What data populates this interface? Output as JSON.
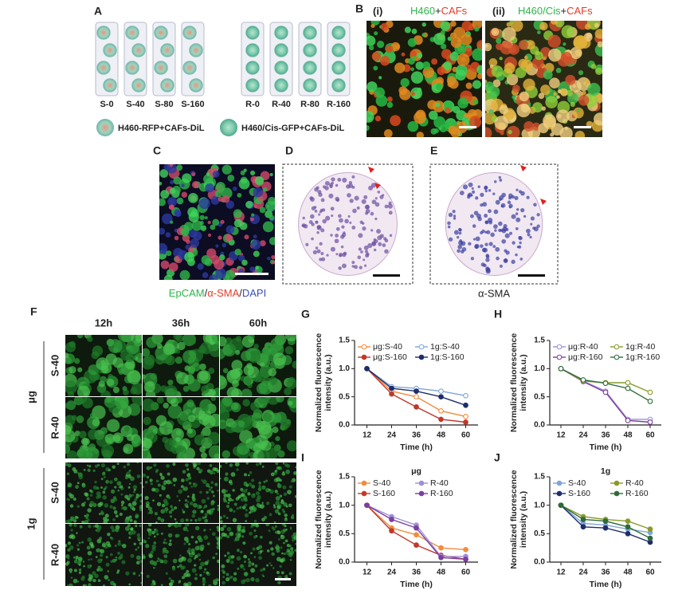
{
  "panel_a": {
    "label": "A",
    "columns_s": [
      "S-0",
      "S-40",
      "S-80",
      "S-160"
    ],
    "columns_r": [
      "R-0",
      "R-40",
      "R-80",
      "R-160"
    ],
    "legend": [
      "H460-RFP+CAFs-DiL",
      "H460/Cis-GFP+CAFs-DiL"
    ]
  },
  "panel_b": {
    "label": "B",
    "sub": [
      {
        "label": "(i)",
        "title": [
          "H460",
          "+",
          "CAFs"
        ]
      },
      {
        "label": "(ii)",
        "title": [
          "H460/Cis",
          "+",
          "CAFs"
        ]
      }
    ]
  },
  "panel_c": {
    "label": "C",
    "caption": [
      "EpCAM",
      "/",
      "α-SMA",
      "/",
      "DAPI"
    ]
  },
  "panel_d": {
    "label": "D"
  },
  "panel_e": {
    "label": "E",
    "caption": "α-SMA"
  },
  "panel_f": {
    "label": "F",
    "times": [
      "12h",
      "36h",
      "60h"
    ],
    "groups": [
      {
        "name": "μg",
        "rows": [
          "S-40",
          "R-40"
        ]
      },
      {
        "name": "1g",
        "rows": [
          "S-40",
          "R-40"
        ]
      }
    ]
  },
  "chart_data": [
    {
      "type": "line",
      "panel": "G",
      "xlabel": "Time (h)",
      "ylabel": [
        "Normalized fluorescence",
        "intensity (a.u.)"
      ],
      "x": [
        12,
        24,
        36,
        48,
        60
      ],
      "xlim": [
        6,
        66
      ],
      "xticks": [
        12,
        24,
        36,
        48,
        60
      ],
      "ylim": [
        0,
        1.5
      ],
      "yticks": [
        {
          "value": 0,
          "label": "0.0"
        },
        0.5,
        {
          "value": 1,
          "label": "1.0"
        },
        1.5
      ],
      "series": [
        {
          "name": "μg:S-40",
          "color": "#f28c3c",
          "marker": "open",
          "values": [
            1.0,
            0.6,
            0.5,
            0.25,
            0.15
          ]
        },
        {
          "name": "μg:S-160",
          "color": "#c0392b",
          "marker": "filled",
          "values": [
            1.0,
            0.55,
            0.32,
            0.1,
            0.05
          ]
        },
        {
          "name": "1g:S-40",
          "color": "#7fa6d9",
          "marker": "open",
          "values": [
            1.0,
            0.68,
            0.65,
            0.6,
            0.52
          ]
        },
        {
          "name": "1g:S-160",
          "color": "#1f2d6b",
          "marker": "filled",
          "values": [
            1.0,
            0.65,
            0.6,
            0.5,
            0.35
          ]
        }
      ]
    },
    {
      "type": "line",
      "panel": "H",
      "xlabel": "Time (h)",
      "ylabel": [
        "Normalized fluorescence",
        "intensity (a.u.)"
      ],
      "x": [
        12,
        24,
        36,
        48,
        60
      ],
      "xlim": [
        6,
        66
      ],
      "xticks": [
        12,
        24,
        36,
        48,
        60
      ],
      "ylim": [
        0,
        1.5
      ],
      "yticks": [
        {
          "value": 0,
          "label": "0.0"
        },
        0.5,
        {
          "value": 1,
          "label": "1.0"
        },
        1.5
      ],
      "series": [
        {
          "name": "μg:R-40",
          "color": "#a08fd6",
          "marker": "open",
          "values": [
            1.0,
            0.78,
            0.6,
            0.1,
            0.1
          ]
        },
        {
          "name": "μg:R-160",
          "color": "#7a3fa0",
          "marker": "open",
          "values": [
            1.0,
            0.77,
            0.58,
            0.08,
            0.05
          ]
        },
        {
          "name": "1g:R-40",
          "color": "#8a9a2a",
          "marker": "open",
          "values": [
            1.0,
            0.78,
            0.75,
            0.75,
            0.58
          ]
        },
        {
          "name": "1g:R-160",
          "color": "#2e6b3a",
          "marker": "open",
          "values": [
            1.0,
            0.8,
            0.74,
            0.65,
            0.42
          ]
        }
      ]
    },
    {
      "type": "line",
      "panel": "I",
      "title": "μg",
      "xlabel": "Time (h)",
      "ylabel": [
        "Normalized fluorescence",
        "intensity (a.u.)"
      ],
      "x": [
        12,
        24,
        36,
        48,
        60
      ],
      "xlim": [
        6,
        66
      ],
      "xticks": [
        12,
        24,
        36,
        48,
        60
      ],
      "ylim": [
        0,
        1.5
      ],
      "yticks": [
        {
          "value": 0,
          "label": "0.0"
        },
        0.5,
        {
          "value": 1,
          "label": "1.0"
        },
        1.5
      ],
      "series": [
        {
          "name": "S-40",
          "color": "#f28c3c",
          "marker": "filled",
          "values": [
            1.0,
            0.6,
            0.48,
            0.25,
            0.22
          ]
        },
        {
          "name": "S-160",
          "color": "#c0392b",
          "marker": "filled",
          "values": [
            1.0,
            0.55,
            0.3,
            0.12,
            0.05
          ]
        },
        {
          "name": "R-40",
          "color": "#a08fd6",
          "marker": "filled",
          "values": [
            1.0,
            0.8,
            0.65,
            0.1,
            0.1
          ]
        },
        {
          "name": "R-160",
          "color": "#7a3fa0",
          "marker": "filled",
          "values": [
            1.0,
            0.75,
            0.6,
            0.08,
            0.05
          ]
        }
      ]
    },
    {
      "type": "line",
      "panel": "J",
      "title": "1g",
      "xlabel": "Time (h)",
      "ylabel": [
        "Normalized fluorescence",
        "intensity (a.u.)"
      ],
      "x": [
        12,
        24,
        36,
        48,
        60
      ],
      "xlim": [
        6,
        66
      ],
      "xticks": [
        12,
        24,
        36,
        48,
        60
      ],
      "ylim": [
        0,
        1.5
      ],
      "yticks": [
        {
          "value": 0,
          "label": "0.0"
        },
        0.5,
        {
          "value": 1,
          "label": "1.0"
        },
        1.5
      ],
      "series": [
        {
          "name": "S-40",
          "color": "#7fa6d9",
          "marker": "filled",
          "values": [
            1.0,
            0.68,
            0.65,
            0.58,
            0.52
          ]
        },
        {
          "name": "S-160",
          "color": "#1f2d6b",
          "marker": "filled",
          "values": [
            1.0,
            0.62,
            0.6,
            0.5,
            0.35
          ]
        },
        {
          "name": "R-40",
          "color": "#8a9a2a",
          "marker": "filled",
          "values": [
            1.0,
            0.8,
            0.75,
            0.72,
            0.58
          ]
        },
        {
          "name": "R-160",
          "color": "#2e6b3a",
          "marker": "filled",
          "values": [
            1.0,
            0.75,
            0.72,
            0.62,
            0.42
          ]
        }
      ]
    }
  ]
}
